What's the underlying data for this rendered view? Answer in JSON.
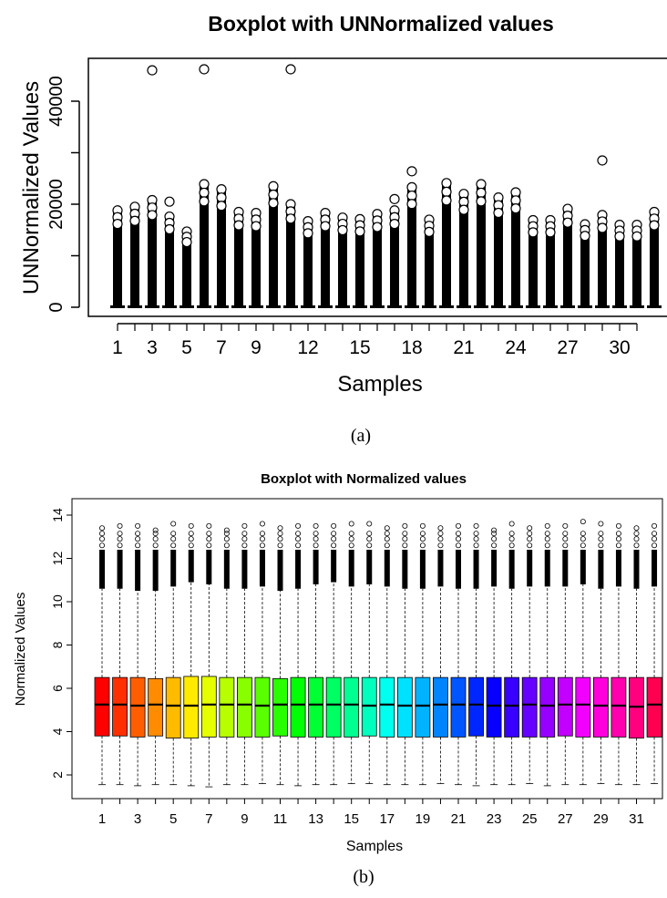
{
  "chart_data": [
    {
      "type": "box",
      "title": "Boxplot with UNNormalized values",
      "xlabel": "Samples",
      "ylabel": "UNNormalized Values",
      "ylim": [
        0,
        48000
      ],
      "y_ticks": [
        "0",
        "20000",
        "40000"
      ],
      "x_tick_labels": [
        "1",
        "3",
        "5",
        "7",
        "9",
        "12",
        "15",
        "18",
        "21",
        "24",
        "27",
        "30"
      ],
      "caption": "(a)",
      "box_color": "#000000",
      "samples": [
        1,
        2,
        3,
        4,
        5,
        6,
        7,
        8,
        9,
        10,
        11,
        12,
        13,
        14,
        15,
        16,
        17,
        18,
        19,
        20,
        21,
        22,
        23,
        24,
        25,
        26,
        27,
        28,
        29,
        30,
        31,
        32
      ],
      "outlier_top": [
        18800,
        19500,
        20800,
        17600,
        14700,
        23900,
        22900,
        18500,
        18300,
        23500,
        20000,
        16700,
        18300,
        17400,
        17100,
        18100,
        18800,
        23300,
        17000,
        24100,
        22000,
        23900,
        21300,
        22300,
        16900,
        16900,
        19100,
        16100,
        17900,
        16000,
        16000,
        18500
      ],
      "extreme_outliers": [
        {
          "sample": 3,
          "value": 46000
        },
        {
          "sample": 4,
          "value": 20500
        },
        {
          "sample": 6,
          "value": 46200
        },
        {
          "sample": 11,
          "value": 46200
        },
        {
          "sample": 17,
          "value": 21000
        },
        {
          "sample": 18,
          "value": 26400
        },
        {
          "sample": 29,
          "value": 28500
        }
      ]
    },
    {
      "type": "box",
      "title": "Boxplot with Normalized values",
      "xlabel": "Samples",
      "ylabel": "Normalized Values",
      "ylim": [
        1,
        14
      ],
      "y_ticks": [
        "2",
        "4",
        "6",
        "8",
        "10",
        "12",
        "14"
      ],
      "x_tick_labels": [
        "1",
        "3",
        "5",
        "7",
        "9",
        "11",
        "13",
        "15",
        "17",
        "19",
        "21",
        "23",
        "25",
        "27",
        "29",
        "31"
      ],
      "caption": "(b)",
      "samples": [
        1,
        2,
        3,
        4,
        5,
        6,
        7,
        8,
        9,
        10,
        11,
        12,
        13,
        14,
        15,
        16,
        17,
        18,
        19,
        20,
        21,
        22,
        23,
        24,
        25,
        26,
        27,
        28,
        29,
        30,
        31,
        32
      ],
      "q1": [
        3.8,
        3.8,
        3.75,
        3.8,
        3.7,
        3.7,
        3.75,
        3.75,
        3.75,
        3.75,
        3.8,
        3.75,
        3.75,
        3.75,
        3.75,
        3.8,
        3.75,
        3.75,
        3.75,
        3.75,
        3.75,
        3.8,
        3.75,
        3.75,
        3.75,
        3.75,
        3.8,
        3.75,
        3.75,
        3.75,
        3.7,
        3.75
      ],
      "median": [
        5.25,
        5.25,
        5.2,
        5.25,
        5.2,
        5.2,
        5.25,
        5.25,
        5.25,
        5.2,
        5.25,
        5.25,
        5.25,
        5.25,
        5.25,
        5.2,
        5.25,
        5.2,
        5.2,
        5.25,
        5.25,
        5.25,
        5.2,
        5.2,
        5.25,
        5.2,
        5.25,
        5.25,
        5.2,
        5.2,
        5.15,
        5.25
      ],
      "q3": [
        6.5,
        6.5,
        6.5,
        6.45,
        6.5,
        6.55,
        6.55,
        6.5,
        6.5,
        6.5,
        6.45,
        6.5,
        6.5,
        6.5,
        6.5,
        6.5,
        6.5,
        6.5,
        6.5,
        6.5,
        6.5,
        6.5,
        6.5,
        6.5,
        6.5,
        6.5,
        6.5,
        6.5,
        6.5,
        6.5,
        6.5,
        6.5
      ],
      "whisker_low": [
        1.55,
        1.55,
        1.5,
        1.55,
        1.55,
        1.5,
        1.45,
        1.55,
        1.55,
        1.6,
        1.55,
        1.5,
        1.55,
        1.55,
        1.6,
        1.6,
        1.55,
        1.55,
        1.55,
        1.6,
        1.55,
        1.5,
        1.55,
        1.55,
        1.6,
        1.5,
        1.55,
        1.55,
        1.6,
        1.55,
        1.55,
        1.6
      ],
      "whisker_high": [
        10.6,
        10.6,
        10.5,
        10.5,
        10.7,
        10.9,
        10.8,
        10.6,
        10.6,
        10.7,
        10.5,
        10.6,
        10.8,
        10.9,
        10.7,
        10.8,
        10.7,
        10.6,
        10.6,
        10.7,
        10.6,
        10.6,
        10.7,
        10.6,
        10.7,
        10.7,
        10.7,
        10.8,
        10.6,
        10.7,
        10.6,
        10.7
      ],
      "outlier_max": [
        13.4,
        13.5,
        13.5,
        13.3,
        13.6,
        13.5,
        13.5,
        13.3,
        13.5,
        13.6,
        13.4,
        13.5,
        13.5,
        13.5,
        13.6,
        13.6,
        13.4,
        13.5,
        13.5,
        13.4,
        13.5,
        13.5,
        13.3,
        13.6,
        13.4,
        13.5,
        13.5,
        13.7,
        13.6,
        13.5,
        13.4,
        13.5
      ],
      "colors": [
        "#ff0000",
        "#ff2f00",
        "#ff5e00",
        "#ff8c00",
        "#ffbb00",
        "#ffea00",
        "#e6ff00",
        "#b7ff00",
        "#88ff00",
        "#59ff00",
        "#2aff00",
        "#00ff04",
        "#00ff33",
        "#00ff62",
        "#00ff91",
        "#00ffbf",
        "#00ffee",
        "#00e1ff",
        "#00b3ff",
        "#0084ff",
        "#0055ff",
        "#0026ff",
        "#0800ff",
        "#3700ff",
        "#6600ff",
        "#9500ff",
        "#c300ff",
        "#f200ff",
        "#ff00dd",
        "#ff00ae",
        "#ff007f",
        "#ff0051"
      ]
    }
  ]
}
